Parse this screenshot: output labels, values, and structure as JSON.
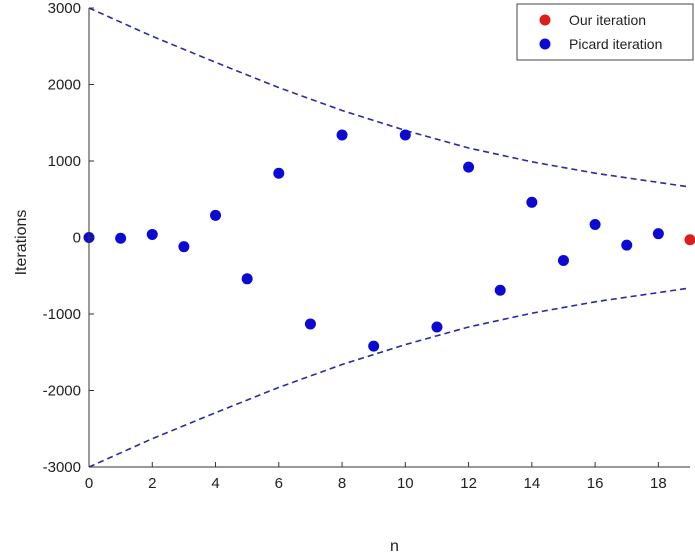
{
  "chart_data": {
    "type": "scatter",
    "title": "",
    "xlabel": "n",
    "ylabel": "Iterations",
    "xlim": [
      0,
      19
    ],
    "ylim": [
      -3000,
      3000
    ],
    "xticks": [
      0,
      2,
      4,
      6,
      8,
      10,
      12,
      14,
      16,
      18
    ],
    "yticks": [
      -3000,
      -2000,
      -1000,
      0,
      1000,
      2000,
      3000
    ],
    "grid": false,
    "legend_position": "top-right",
    "series": [
      {
        "name": "Our iteration",
        "color": "#dd1e1e",
        "points": [
          {
            "x": 19,
            "y": -30
          }
        ]
      },
      {
        "name": "Picard iteration",
        "color": "#0a0ad2",
        "points": [
          {
            "x": 0,
            "y": 0
          },
          {
            "x": 1,
            "y": -10
          },
          {
            "x": 2,
            "y": 40
          },
          {
            "x": 3,
            "y": -120
          },
          {
            "x": 4,
            "y": 290
          },
          {
            "x": 5,
            "y": -540
          },
          {
            "x": 6,
            "y": 840
          },
          {
            "x": 7,
            "y": -1130
          },
          {
            "x": 8,
            "y": 1340
          },
          {
            "x": 9,
            "y": -1420
          },
          {
            "x": 10,
            "y": 1340
          },
          {
            "x": 11,
            "y": -1170
          },
          {
            "x": 12,
            "y": 920
          },
          {
            "x": 13,
            "y": -690
          },
          {
            "x": 14,
            "y": 460
          },
          {
            "x": 15,
            "y": -300
          },
          {
            "x": 16,
            "y": 170
          },
          {
            "x": 17,
            "y": -100
          },
          {
            "x": 18,
            "y": 50
          }
        ]
      }
    ],
    "envelope": {
      "style": "dashed",
      "color": "#2b2b9e",
      "upper": [
        {
          "x": 0,
          "y": 3000
        },
        {
          "x": 2,
          "y": 2630
        },
        {
          "x": 4,
          "y": 2290
        },
        {
          "x": 6,
          "y": 1960
        },
        {
          "x": 8,
          "y": 1660
        },
        {
          "x": 10,
          "y": 1400
        },
        {
          "x": 12,
          "y": 1170
        },
        {
          "x": 14,
          "y": 990
        },
        {
          "x": 16,
          "y": 840
        },
        {
          "x": 18,
          "y": 720
        },
        {
          "x": 19,
          "y": 660
        }
      ],
      "lower": [
        {
          "x": 0,
          "y": -3000
        },
        {
          "x": 2,
          "y": -2630
        },
        {
          "x": 4,
          "y": -2290
        },
        {
          "x": 6,
          "y": -1960
        },
        {
          "x": 8,
          "y": -1660
        },
        {
          "x": 10,
          "y": -1400
        },
        {
          "x": 12,
          "y": -1170
        },
        {
          "x": 14,
          "y": -990
        },
        {
          "x": 16,
          "y": -840
        },
        {
          "x": 18,
          "y": -720
        },
        {
          "x": 19,
          "y": -660
        }
      ]
    }
  }
}
